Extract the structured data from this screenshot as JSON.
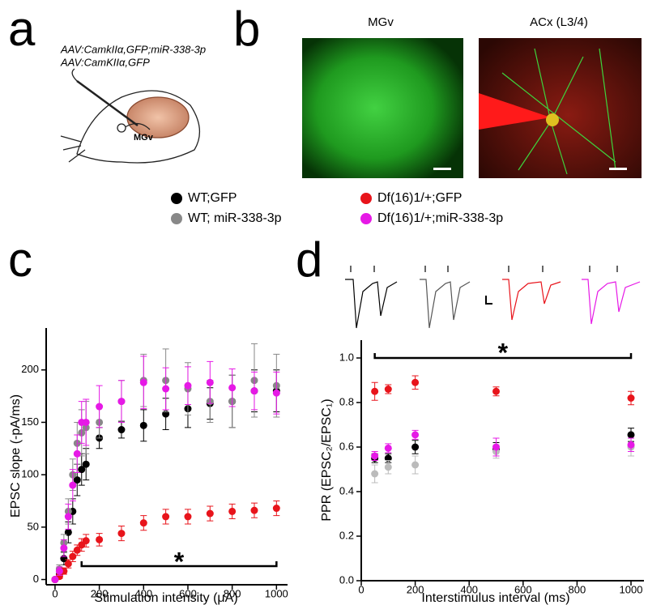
{
  "panels": {
    "a": {
      "label": "a",
      "lines": [
        "AAV:CamkIIα,GFP;miR-338-3p",
        "AAV:CamKIIα,GFP"
      ],
      "region": "MGv"
    },
    "b": {
      "label": "b",
      "titles": [
        "MGv",
        "ACx (L3/4)"
      ]
    },
    "c": {
      "label": "c"
    },
    "d": {
      "label": "d"
    }
  },
  "chart_data": [
    {
      "type": "scatter",
      "x_label": "Stimulation intensity (μA)",
      "y_label": "EPSC slope (-pA/ms)",
      "annotation": "*",
      "x": [
        0,
        20,
        40,
        60,
        80,
        100,
        120,
        140,
        200,
        300,
        400,
        500,
        600,
        700,
        800,
        900,
        1000
      ],
      "xlim": [
        -40,
        1050
      ],
      "xticks": [
        0,
        200,
        400,
        600,
        800,
        1000
      ],
      "ylim": [
        -5,
        240
      ],
      "yticks": [
        0,
        50,
        100,
        150,
        200
      ],
      "series": [
        {
          "name": "WT;GFP",
          "color": "#000000",
          "values": [
            0,
            5,
            20,
            45,
            65,
            95,
            105,
            110,
            135,
            143,
            147,
            158,
            163,
            168,
            170,
            180,
            180
          ],
          "errors": [
            1,
            3,
            6,
            10,
            12,
            15,
            15,
            15,
            10,
            8,
            15,
            15,
            18,
            15,
            25,
            20,
            20
          ]
        },
        {
          "name": "WT; miR-338-3p",
          "color": "#888888",
          "values": [
            0,
            10,
            35,
            65,
            100,
            130,
            140,
            145,
            150,
            170,
            190,
            190,
            182,
            170,
            170,
            190,
            185
          ],
          "errors": [
            1,
            4,
            8,
            12,
            15,
            20,
            22,
            25,
            15,
            20,
            25,
            30,
            25,
            20,
            25,
            35,
            30
          ]
        },
        {
          "name": "Df(16)1/+;GFP",
          "color": "#e8141b",
          "values": [
            0,
            3,
            8,
            15,
            22,
            28,
            33,
            37,
            38,
            44,
            54,
            60,
            60,
            63,
            65,
            66,
            68
          ],
          "errors": [
            1,
            2,
            3,
            4,
            5,
            5,
            6,
            6,
            6,
            7,
            7,
            7,
            7,
            7,
            7,
            7,
            7
          ]
        },
        {
          "name": "Df(16)1/+;miR-338-3p",
          "color": "#e619e6",
          "values": [
            0,
            8,
            30,
            60,
            90,
            120,
            150,
            150,
            165,
            170,
            188,
            182,
            185,
            188,
            183,
            180,
            178
          ],
          "errors": [
            1,
            4,
            8,
            12,
            15,
            18,
            20,
            22,
            20,
            20,
            25,
            20,
            18,
            20,
            18,
            18,
            20
          ]
        }
      ]
    },
    {
      "type": "scatter",
      "x_label": "Interstimulus interval (ms)",
      "y_label": "PPR (EPSC₂/EPSC₁)",
      "annotation": "*",
      "x": [
        50,
        100,
        200,
        500,
        1000
      ],
      "xlim": [
        0,
        1048
      ],
      "xticks": [
        0,
        200,
        400,
        600,
        800,
        1000
      ],
      "ylim": [
        0,
        1.08
      ],
      "yticks": [
        {
          "value": 0,
          "label": "0.0"
        },
        {
          "value": 0.2,
          "label": "0.2"
        },
        {
          "value": 0.4,
          "label": "0.4"
        },
        {
          "value": 0.6,
          "label": "0.6"
        },
        {
          "value": 0.8,
          "label": "0.8"
        },
        {
          "value": 1,
          "label": "1.0"
        }
      ],
      "series": [
        {
          "color": "#000000",
          "values": [
            0.55,
            0.55,
            0.6,
            0.59,
            0.655
          ],
          "errors": [
            0.02,
            0.02,
            0.03,
            0.03,
            0.03
          ]
        },
        {
          "color": "#bbbbbb",
          "values": [
            0.48,
            0.51,
            0.52,
            0.58,
            0.6
          ],
          "errors": [
            0.04,
            0.03,
            0.04,
            0.03,
            0.04
          ]
        },
        {
          "color": "#e8141b",
          "values": [
            0.85,
            0.86,
            0.89,
            0.85,
            0.82
          ],
          "errors": [
            0.04,
            0.02,
            0.03,
            0.02,
            0.03
          ]
        },
        {
          "color": "#e619e6",
          "values": [
            0.56,
            0.595,
            0.655,
            0.6,
            0.61
          ],
          "errors": [
            0.02,
            0.02,
            0.02,
            0.04,
            0.03
          ]
        }
      ]
    }
  ]
}
